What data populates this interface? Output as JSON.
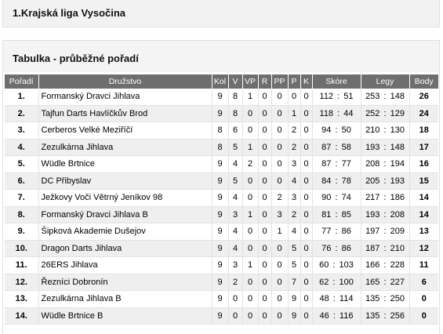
{
  "league_title": "1.Krajská liga Vysočina",
  "section_title": "Tabulka - průběžné pořadí",
  "columns": {
    "pos": "Pořadí",
    "team": "Družstvo",
    "kol": "Kol",
    "v": "V",
    "vp": "VP",
    "r": "R",
    "pp": "PP",
    "p": "P",
    "k": "K",
    "score": "Skóre",
    "legs": "Legy",
    "pts": "Body"
  },
  "rows": [
    {
      "pos": "1.",
      "team": "Formanský Dravci Jihlava",
      "kol": "9",
      "v": "8",
      "vp": "1",
      "r": "0",
      "pp": "0",
      "p": "0",
      "k": "0",
      "score": "112 :  51",
      "legs": "253 : 148",
      "pts": "26"
    },
    {
      "pos": "2.",
      "team": "Tajfun Darts Havlíčkův Brod",
      "kol": "9",
      "v": "8",
      "vp": "0",
      "r": "0",
      "pp": "0",
      "p": "1",
      "k": "0",
      "score": "118 :  44",
      "legs": "252 : 129",
      "pts": "24"
    },
    {
      "pos": "3.",
      "team": "Cerberos Velké Meziříčí",
      "kol": "8",
      "v": "6",
      "vp": "0",
      "r": "0",
      "pp": "0",
      "p": "2",
      "k": "0",
      "score": "94  :  50",
      "legs": "210 : 130",
      "pts": "18"
    },
    {
      "pos": "4.",
      "team": "Zezulkárna Jihlava",
      "kol": "8",
      "v": "5",
      "vp": "1",
      "r": "0",
      "pp": "0",
      "p": "2",
      "k": "0",
      "score": "87  :  58",
      "legs": "193 : 148",
      "pts": "17"
    },
    {
      "pos": "5.",
      "team": "Wüdle Brtnice",
      "kol": "9",
      "v": "4",
      "vp": "2",
      "r": "0",
      "pp": "0",
      "p": "3",
      "k": "0",
      "score": "87  :  77",
      "legs": "208 : 194",
      "pts": "16"
    },
    {
      "pos": "6.",
      "team": "DC Přibyslav",
      "kol": "9",
      "v": "5",
      "vp": "0",
      "r": "0",
      "pp": "0",
      "p": "4",
      "k": "0",
      "score": "84  :  78",
      "legs": "205 : 193",
      "pts": "15"
    },
    {
      "pos": "7.",
      "team": "Ježkovy Voči Větrný Jeníkov 98",
      "kol": "9",
      "v": "4",
      "vp": "0",
      "r": "0",
      "pp": "2",
      "p": "3",
      "k": "0",
      "score": "90  :  74",
      "legs": "217 : 186",
      "pts": "14"
    },
    {
      "pos": "8.",
      "team": "Formanský Dravci Jihlava B",
      "kol": "9",
      "v": "3",
      "vp": "1",
      "r": "0",
      "pp": "3",
      "p": "2",
      "k": "0",
      "score": "81  :  85",
      "legs": "193 : 208",
      "pts": "14"
    },
    {
      "pos": "9.",
      "team": "Šipková Akademie Dušejov",
      "kol": "9",
      "v": "4",
      "vp": "0",
      "r": "0",
      "pp": "1",
      "p": "4",
      "k": "0",
      "score": "77  :  86",
      "legs": "197 : 209",
      "pts": "13"
    },
    {
      "pos": "10.",
      "team": "Dragon Darts Jihlava",
      "kol": "9",
      "v": "4",
      "vp": "0",
      "r": "0",
      "pp": "0",
      "p": "5",
      "k": "0",
      "score": "76  :  86",
      "legs": "187 : 210",
      "pts": "12"
    },
    {
      "pos": "11.",
      "team": "26ERS Jihlava",
      "kol": "9",
      "v": "3",
      "vp": "1",
      "r": "0",
      "pp": "0",
      "p": "5",
      "k": "0",
      "score": "60  : 103",
      "legs": "166 : 228",
      "pts": "11"
    },
    {
      "pos": "12.",
      "team": "Řezníci Dobronín",
      "kol": "9",
      "v": "2",
      "vp": "0",
      "r": "0",
      "pp": "0",
      "p": "7",
      "k": "0",
      "score": "62  : 100",
      "legs": "165 : 227",
      "pts": "6"
    },
    {
      "pos": "13.",
      "team": "Zezulkárna Jihlava B",
      "kol": "9",
      "v": "0",
      "vp": "0",
      "r": "0",
      "pp": "0",
      "p": "9",
      "k": "0",
      "score": "48  : 114",
      "legs": "135 : 250",
      "pts": "0"
    },
    {
      "pos": "14.",
      "team": "Wüdle Brtnice B",
      "kol": "9",
      "v": "0",
      "vp": "0",
      "r": "0",
      "pp": "0",
      "p": "9",
      "k": "0",
      "score": "46  : 116",
      "legs": "135 : 256",
      "pts": "0"
    }
  ]
}
